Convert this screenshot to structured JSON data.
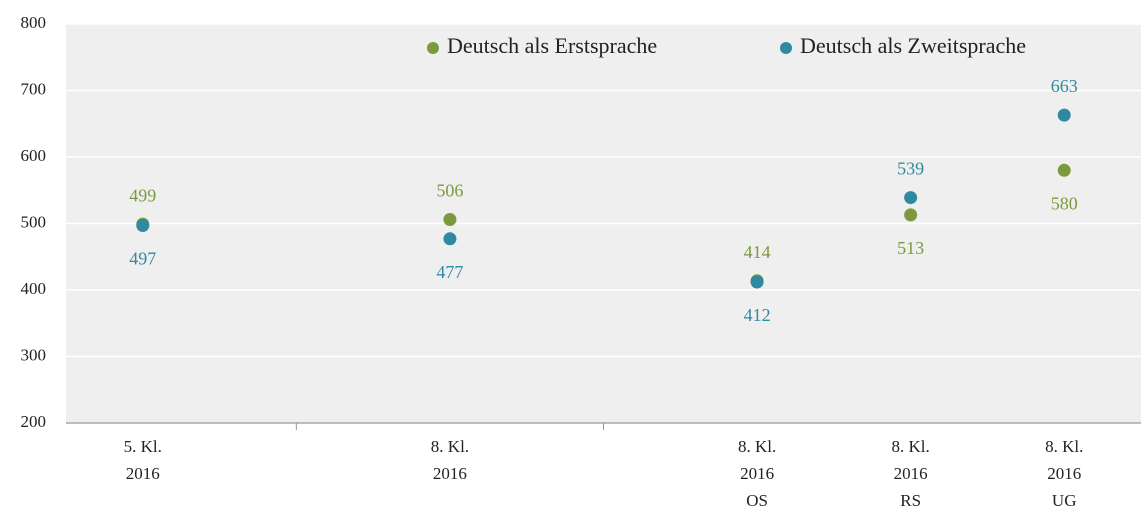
{
  "chart_data": {
    "type": "dot",
    "categories": [
      [
        "5. Kl.",
        "2016"
      ],
      null,
      [
        "8. Kl.",
        "2016"
      ],
      null,
      [
        "8. Kl.",
        "2016",
        "OS"
      ],
      [
        "8. Kl.",
        "2016",
        "RS"
      ],
      [
        "8. Kl.",
        "2016",
        "UG"
      ]
    ],
    "series": [
      {
        "name": "Deutsch als Erstsprache",
        "color": "#7b9a3c",
        "values": [
          499,
          null,
          506,
          null,
          414,
          513,
          580
        ]
      },
      {
        "name": "Deutsch als Zweitsprache",
        "color": "#2f89a0",
        "values": [
          497,
          null,
          477,
          null,
          412,
          539,
          663
        ]
      }
    ],
    "ylim": [
      200,
      800
    ],
    "yticks": [
      200,
      300,
      400,
      500,
      600,
      700,
      800
    ],
    "grid": true,
    "legend": "top"
  }
}
